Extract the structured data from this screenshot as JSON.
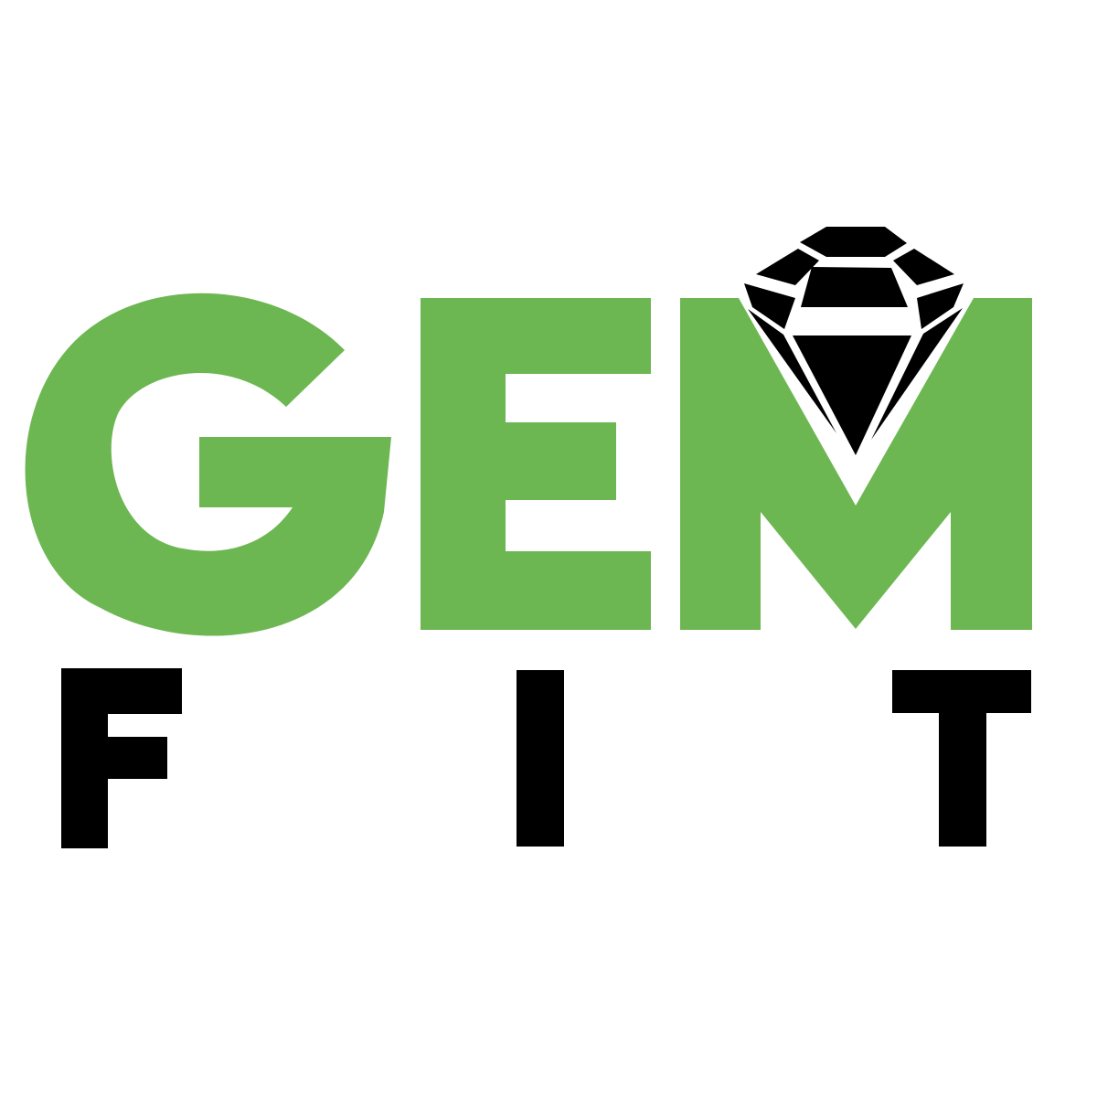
{
  "logo": {
    "line1": "GEM",
    "line2": "FIT",
    "letters_line1": [
      "G",
      "E",
      "M"
    ],
    "letters_line2": [
      "F",
      "I",
      "T"
    ],
    "icon": "diamond-icon",
    "colors": {
      "green": "#6db752",
      "black": "#000000",
      "background": "#ffffff"
    }
  }
}
